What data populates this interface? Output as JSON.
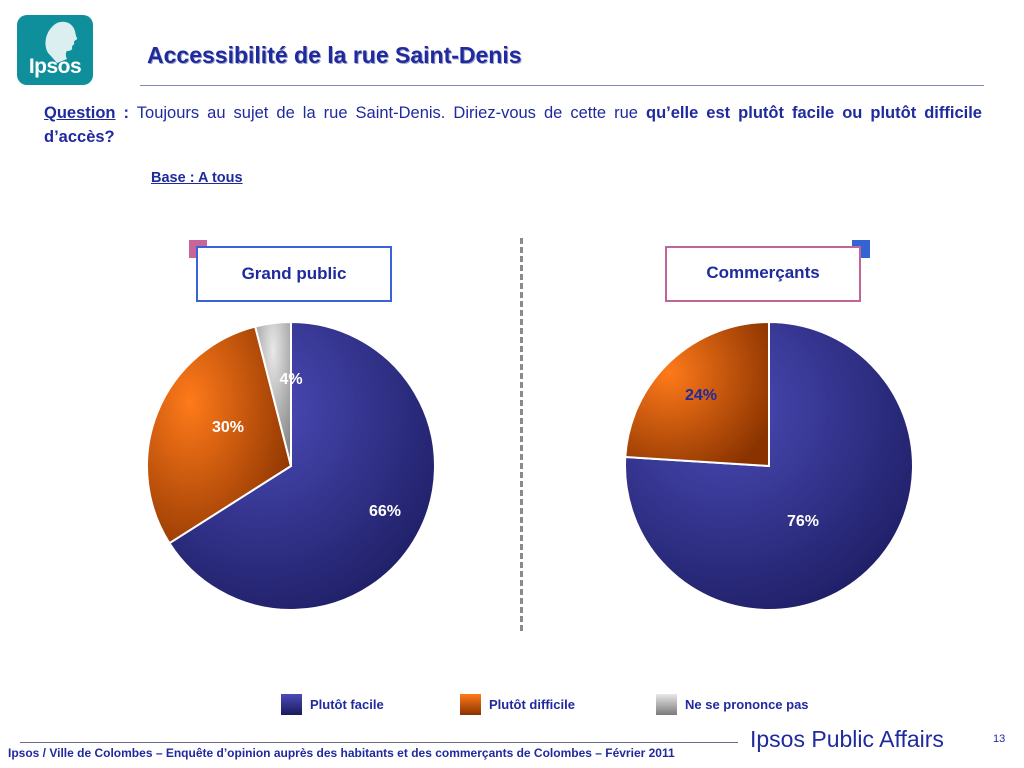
{
  "logo": {
    "text": "Ipsos"
  },
  "title": "Accessibilité de la rue Saint-Denis",
  "question": {
    "label": "Question",
    "colon": " :",
    "text": " Toujours au sujet de la rue Saint-Denis. Diriez-vous de cette rue ",
    "bold_text": "qu’elle est plutôt facile ou plutôt difficile d’accès?"
  },
  "base": "Base : A tous",
  "groups": {
    "grand_public": "Grand public",
    "commercants": "Commerçants"
  },
  "legend": [
    {
      "label": "Plutôt facile",
      "color": "#2e3192"
    },
    {
      "label": "Plutôt difficile",
      "color": "#ff6600"
    },
    {
      "label": "Ne se prononce pas",
      "color": "#b0b0b0"
    }
  ],
  "chart_data": [
    {
      "type": "pie",
      "title": "Grand public",
      "slices": [
        {
          "name": "Plutôt facile",
          "value": 66,
          "label": "66%"
        },
        {
          "name": "Plutôt difficile",
          "value": 30,
          "label": "30%"
        },
        {
          "name": "Ne se prononce pas",
          "value": 4,
          "label": "4%"
        }
      ]
    },
    {
      "type": "pie",
      "title": "Commerçants",
      "slices": [
        {
          "name": "Plutôt facile",
          "value": 76,
          "label": "76%"
        },
        {
          "name": "Plutôt difficile",
          "value": 24,
          "label": "24%"
        }
      ]
    }
  ],
  "footer": "Ipsos / Ville de Colombes – Enquête d’opinion auprès des habitants et des commerçants de Colombes – Février 2011",
  "brand": "Ipsos Public Affairs",
  "page_number": "13"
}
